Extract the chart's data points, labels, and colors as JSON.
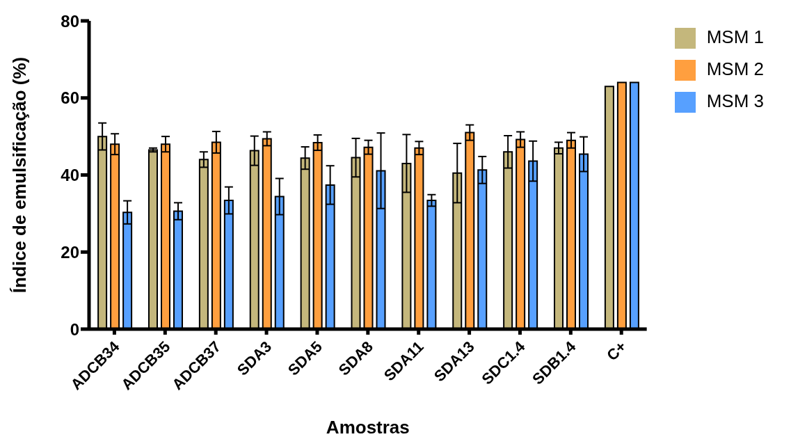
{
  "chart_data": {
    "type": "bar",
    "xlabel": "Amostras",
    "ylabel": "Índice de emulsificação (%)",
    "categories": [
      "ADCB34",
      "ADCB35",
      "ADCB37",
      "SDA3",
      "SDA5",
      "SDA8",
      "SDA11",
      "SDA13",
      "SDC1.4",
      "SDB1.4",
      "C+"
    ],
    "series": [
      {
        "name": "MSM 1",
        "color": "#c4b77c",
        "values": [
          50,
          46.5,
          44,
          46.3,
          44.4,
          44.5,
          43,
          40.5,
          46,
          47,
          63
        ],
        "errors": [
          3.5,
          0.5,
          2,
          3.8,
          2.9,
          5,
          7.5,
          7.7,
          4.2,
          1.5,
          null
        ]
      },
      {
        "name": "MSM 2",
        "color": "#ff9f3f",
        "values": [
          48,
          48,
          48.5,
          49.4,
          48.4,
          47.2,
          47,
          51,
          49.2,
          49,
          64
        ],
        "errors": [
          2.7,
          2,
          2.8,
          1.8,
          2,
          1.8,
          1.7,
          2,
          2,
          2,
          null
        ]
      },
      {
        "name": "MSM 3",
        "color": "#57a0ff",
        "values": [
          30.3,
          30.6,
          33.4,
          34.4,
          37.4,
          41.1,
          33.4,
          41.3,
          43.6,
          45.4,
          64
        ],
        "errors": [
          3,
          2.2,
          3.5,
          4.7,
          5,
          9.8,
          1.5,
          3.5,
          5.2,
          4.5,
          null
        ]
      }
    ],
    "ylim": [
      0,
      80
    ],
    "yticks": [
      0,
      20,
      40,
      60,
      80
    ],
    "grid": false,
    "legend": "top right"
  }
}
